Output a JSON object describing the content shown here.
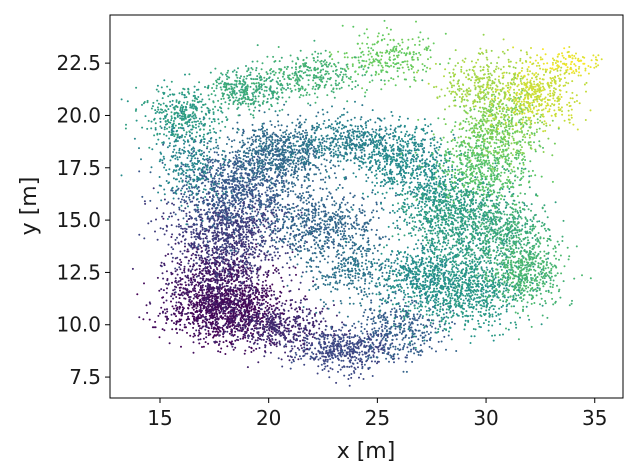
{
  "chart_data": {
    "type": "scatter",
    "title": "",
    "xlabel": "x [m]",
    "ylabel": "y [m]",
    "xlim": [
      12.7,
      36.3
    ],
    "ylim": [
      6.5,
      24.8
    ],
    "x_ticks": [
      15,
      20,
      25,
      30,
      35
    ],
    "x_tick_labels": [
      "15",
      "20",
      "25",
      "30",
      "35"
    ],
    "y_ticks": [
      7.5,
      10.0,
      12.5,
      15.0,
      17.5,
      20.0,
      22.5
    ],
    "y_tick_labels": [
      "7.5",
      "10.0",
      "12.5",
      "15.0",
      "17.5",
      "20.0",
      "22.5"
    ],
    "grid": false,
    "legend": "none",
    "colormap": "viridis",
    "colormap_stops": [
      "#440154",
      "#3b528b",
      "#21918c",
      "#5ec962",
      "#fde725"
    ],
    "marker_color_note": "points colored by sequence order along the trajectory",
    "clusters": [
      {
        "x": 18.0,
        "y": 10.8,
        "sx": 1.3,
        "sy": 0.8,
        "n": 1200,
        "c": 0.02
      },
      {
        "x": 17.6,
        "y": 12.2,
        "sx": 1.2,
        "sy": 1.0,
        "n": 700,
        "c": 0.08
      },
      {
        "x": 20.5,
        "y": 9.8,
        "sx": 1.2,
        "sy": 0.6,
        "n": 450,
        "c": 0.12
      },
      {
        "x": 23.5,
        "y": 8.8,
        "sx": 1.1,
        "sy": 0.5,
        "n": 500,
        "c": 0.22
      },
      {
        "x": 26.0,
        "y": 9.8,
        "sx": 1.0,
        "sy": 0.7,
        "n": 350,
        "c": 0.3
      },
      {
        "x": 18.2,
        "y": 14.5,
        "sx": 1.4,
        "sy": 1.0,
        "n": 900,
        "c": 0.18
      },
      {
        "x": 18.5,
        "y": 16.5,
        "sx": 1.3,
        "sy": 0.9,
        "n": 800,
        "c": 0.28
      },
      {
        "x": 20.5,
        "y": 18.2,
        "sx": 1.1,
        "sy": 0.7,
        "n": 700,
        "c": 0.35
      },
      {
        "x": 22.5,
        "y": 14.8,
        "sx": 1.3,
        "sy": 0.8,
        "n": 600,
        "c": 0.33
      },
      {
        "x": 23.8,
        "y": 12.5,
        "sx": 1.0,
        "sy": 0.8,
        "n": 300,
        "c": 0.38
      },
      {
        "x": 23.5,
        "y": 18.8,
        "sx": 1.3,
        "sy": 0.6,
        "n": 450,
        "c": 0.42
      },
      {
        "x": 26.0,
        "y": 18.0,
        "sx": 1.0,
        "sy": 0.8,
        "n": 500,
        "c": 0.47
      },
      {
        "x": 27.5,
        "y": 16.2,
        "sx": 1.0,
        "sy": 0.9,
        "n": 350,
        "c": 0.5
      },
      {
        "x": 29.0,
        "y": 15.0,
        "sx": 1.3,
        "sy": 1.1,
        "n": 900,
        "c": 0.56
      },
      {
        "x": 29.0,
        "y": 11.8,
        "sx": 1.4,
        "sy": 1.0,
        "n": 900,
        "c": 0.53
      },
      {
        "x": 27.0,
        "y": 12.3,
        "sx": 1.0,
        "sy": 0.8,
        "n": 400,
        "c": 0.48
      },
      {
        "x": 31.8,
        "y": 12.5,
        "sx": 0.9,
        "sy": 0.9,
        "n": 500,
        "c": 0.66
      },
      {
        "x": 31.2,
        "y": 14.5,
        "sx": 0.9,
        "sy": 0.8,
        "n": 300,
        "c": 0.62
      },
      {
        "x": 30.0,
        "y": 17.8,
        "sx": 1.1,
        "sy": 0.9,
        "n": 550,
        "c": 0.72
      },
      {
        "x": 30.5,
        "y": 19.5,
        "sx": 1.0,
        "sy": 0.8,
        "n": 450,
        "c": 0.8
      },
      {
        "x": 32.3,
        "y": 21.0,
        "sx": 1.0,
        "sy": 0.8,
        "n": 450,
        "c": 0.92
      },
      {
        "x": 29.8,
        "y": 21.5,
        "sx": 1.0,
        "sy": 0.7,
        "n": 300,
        "c": 0.86
      },
      {
        "x": 33.8,
        "y": 22.5,
        "sx": 0.8,
        "sy": 0.3,
        "n": 100,
        "c": 0.97
      },
      {
        "x": 25.5,
        "y": 22.8,
        "sx": 1.2,
        "sy": 0.6,
        "n": 250,
        "c": 0.76
      },
      {
        "x": 22.0,
        "y": 22.0,
        "sx": 1.2,
        "sy": 0.5,
        "n": 300,
        "c": 0.64
      },
      {
        "x": 19.0,
        "y": 21.2,
        "sx": 1.0,
        "sy": 0.5,
        "n": 350,
        "c": 0.6
      },
      {
        "x": 16.0,
        "y": 20.0,
        "sx": 0.9,
        "sy": 0.7,
        "n": 350,
        "c": 0.55
      },
      {
        "x": 16.3,
        "y": 17.8,
        "sx": 0.8,
        "sy": 1.0,
        "n": 300,
        "c": 0.45
      }
    ]
  }
}
